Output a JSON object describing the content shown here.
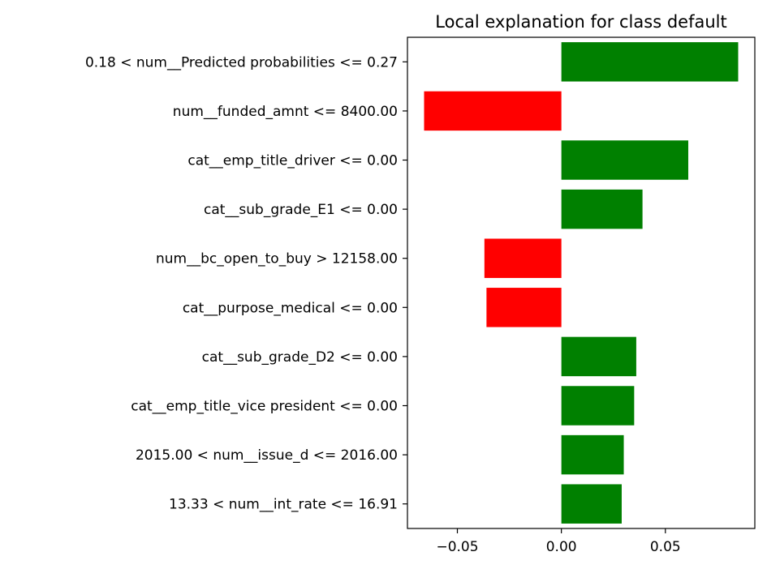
{
  "chart_data": {
    "type": "bar",
    "orientation": "horizontal",
    "title": "Local explanation for class default",
    "xlabel": "",
    "ylabel": "",
    "xlim": [
      -0.074,
      0.093
    ],
    "xticks": [
      -0.05,
      0.0,
      0.05
    ],
    "xtick_labels": [
      "−0.05",
      "0.00",
      "0.05"
    ],
    "grid": false,
    "legend": "none",
    "colors": {
      "positive": "#008000",
      "negative": "#ff0000"
    },
    "categories": [
      "0.18 < num__Predicted probabilities <= 0.27",
      "num__funded_amnt <= 8400.00",
      "cat__emp_title_driver <= 0.00",
      "cat__sub_grade_E1 <= 0.00",
      "num__bc_open_to_buy > 12158.00",
      "cat__purpose_medical <= 0.00",
      "cat__sub_grade_D2 <= 0.00",
      "cat__emp_title_vice president <= 0.00",
      "2015.00 < num__issue_d <= 2016.00",
      "13.33 < num__int_rate <= 16.91"
    ],
    "values": [
      0.085,
      -0.066,
      0.061,
      0.039,
      -0.037,
      -0.036,
      0.036,
      0.035,
      0.03,
      0.029
    ]
  }
}
